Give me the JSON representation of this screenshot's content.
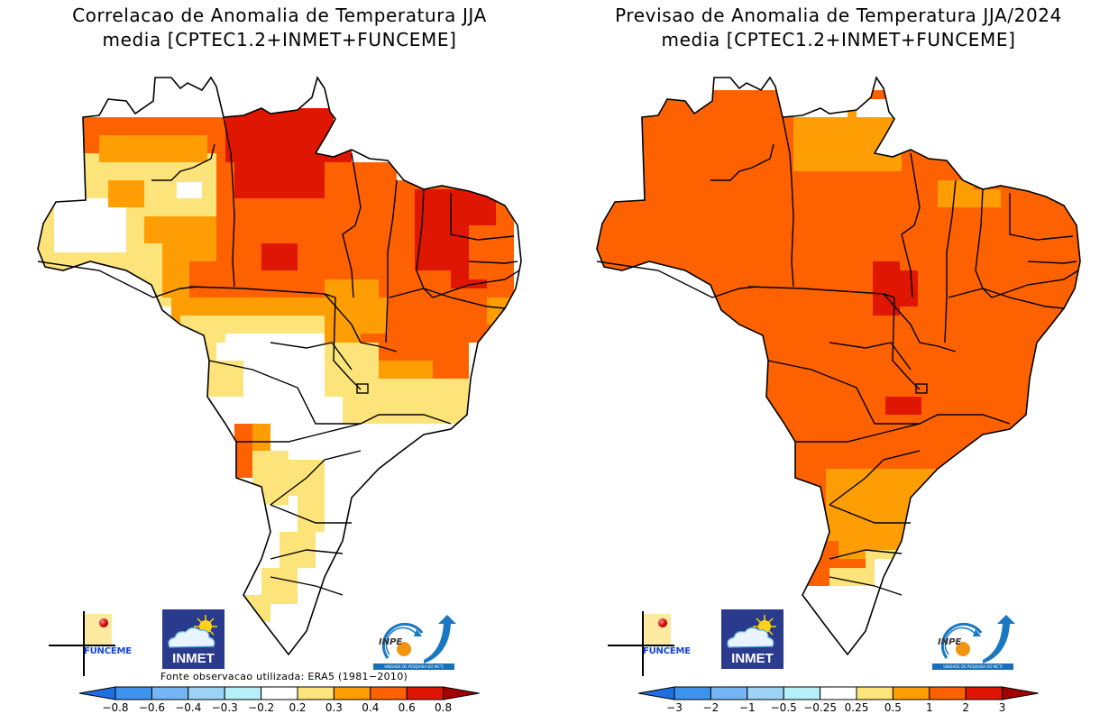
{
  "panels": [
    {
      "id": "left",
      "title_line1": "Correlacao de Anomalia de Temperatura JJA",
      "title_line2": "media [CPTEC1.2+INMET+FUNCEME]",
      "source_note": "Fonte observacao utilizada: ERA5 (1981−2010)",
      "colorbar": {
        "tick_labels": [
          "−0.8",
          "−0.6",
          "−0.4",
          "−0.3",
          "−0.2",
          "0.2",
          "0.3",
          "0.4",
          "0.6",
          "0.8"
        ],
        "colors": [
          "#1f6fe0",
          "#3c94ef",
          "#74b6f5",
          "#9ed3f8",
          "#b5eff8",
          "#ffffff",
          "#fde47a",
          "#fe9e04",
          "#fe6200",
          "#df1601",
          "#a20100"
        ]
      }
    },
    {
      "id": "right",
      "title_line1": "Previsao de Anomalia de Temperatura JJA/2024",
      "title_line2": "media [CPTEC1.2+INMET+FUNCEME]",
      "source_note": "",
      "colorbar": {
        "tick_labels": [
          "−3",
          "−2",
          "−1",
          "−0.5",
          "−0.25",
          "0.25",
          "0.5",
          "1",
          "2",
          "3"
        ],
        "colors": [
          "#1f6fe0",
          "#3c94ef",
          "#74b6f5",
          "#9ed3f8",
          "#b5eff8",
          "#ffffff",
          "#fde47a",
          "#fe9e04",
          "#fe6200",
          "#df1601",
          "#a20100"
        ]
      }
    }
  ],
  "logos": {
    "funceme": "FUNCEME",
    "inmet": "INMET",
    "inpe": "INPE",
    "inpe_band": "UNIDADE DE PESQUISA DO MCTI"
  },
  "map_legend_classes": [
    "below-lowest",
    "class-1",
    "class-2",
    "class-3",
    "class-4",
    "neutral",
    "class-6",
    "class-7",
    "class-8",
    "class-9",
    "above-highest"
  ],
  "map_data": {
    "left_regions": [
      {
        "region": "Roraima",
        "class": 8
      },
      {
        "region": "Amazonas north",
        "class": 8
      },
      {
        "region": "Amazonas central",
        "class": 6
      },
      {
        "region": "Acre",
        "class": 6
      },
      {
        "region": "Amapa / north Para",
        "class": 9
      },
      {
        "region": "Para",
        "class": 8
      },
      {
        "region": "Maranhao",
        "class": 8
      },
      {
        "region": "Piaui / Ceara",
        "class": 9
      },
      {
        "region": "Rio Grande do Norte / Paraiba / Pernambuco",
        "class": 8
      },
      {
        "region": "Bahia",
        "class": 8
      },
      {
        "region": "Tocantins",
        "class": 7
      },
      {
        "region": "Mato Grosso",
        "class": 5
      },
      {
        "region": "Goias / Minas Gerais",
        "class": 5
      },
      {
        "region": "Mato Grosso do Sul west",
        "class": 8
      },
      {
        "region": "Parana / Santa Catarina west",
        "class": 6
      },
      {
        "region": "Rio Grande do Sul west",
        "class": 6
      },
      {
        "region": "Sao Paulo / Rio de Janeiro",
        "class": 5
      }
    ],
    "right_regions": [
      {
        "region": "North",
        "class": 8
      },
      {
        "region": "Amapa / north Para coast",
        "class": 7
      },
      {
        "region": "Northeast",
        "class": 8
      },
      {
        "region": "Central-West",
        "class": 8
      },
      {
        "region": "Tocantins / Mato Grosso border",
        "class": 9
      },
      {
        "region": "Goias spot",
        "class": 9
      },
      {
        "region": "Southeast",
        "class": 8
      },
      {
        "region": "Parana",
        "class": 7
      },
      {
        "region": "Santa Catarina",
        "class": 6
      },
      {
        "region": "Rio Grande do Sul",
        "class": 5
      }
    ]
  }
}
